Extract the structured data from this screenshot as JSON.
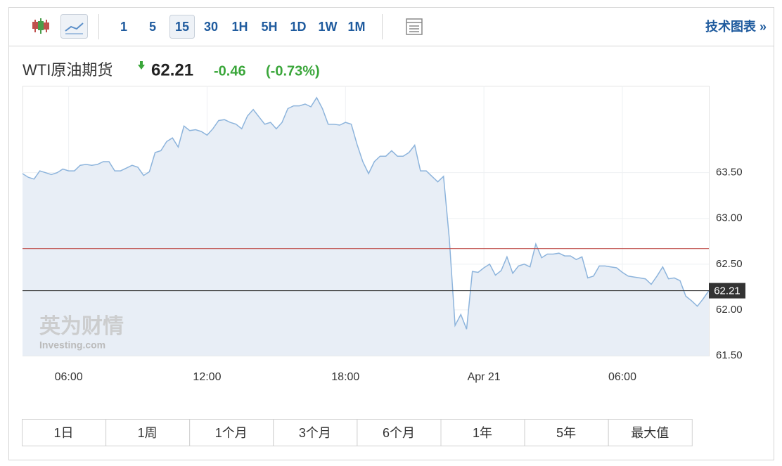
{
  "toolbar": {
    "intervals": [
      "1",
      "5",
      "15",
      "30",
      "1H",
      "5H",
      "1D",
      "1W",
      "1M"
    ],
    "active_interval": "15",
    "link": "技术图表 »"
  },
  "quote": {
    "name": "WTI原油期货",
    "price": "62.21",
    "change": "-0.46",
    "change_percent": "(-0.73%)"
  },
  "watermark": {
    "brand": "英为财情",
    "site": "Investing.com"
  },
  "chart_data": {
    "type": "line",
    "x": [
      4,
      4.25,
      4.5,
      4.75,
      5,
      5.25,
      5.5,
      5.75,
      6,
      6.25,
      6.5,
      6.75,
      7,
      7.25,
      7.5,
      7.75,
      8,
      8.25,
      8.5,
      8.75,
      9,
      9.25,
      9.5,
      9.75,
      10,
      10.25,
      10.5,
      10.75,
      11,
      11.25,
      11.5,
      11.75,
      12,
      12.25,
      12.5,
      12.75,
      13,
      13.25,
      13.5,
      13.75,
      14,
      14.25,
      14.5,
      14.75,
      15,
      15.25,
      15.5,
      15.75,
      16,
      16.25,
      16.5,
      16.75,
      17,
      17.25,
      17.5,
      17.75,
      18,
      18.25,
      18.5,
      18.75,
      19,
      19.25,
      19.5,
      19.75,
      20,
      20.25,
      20.5,
      20.75,
      21,
      21.25,
      21.5,
      21.75,
      22,
      22.25,
      22.5,
      22.75,
      23,
      23.25,
      23.5,
      23.75,
      24,
      24.25,
      24.5,
      24.75,
      25,
      25.25,
      25.5,
      25.75,
      26,
      26.25,
      26.5,
      26.75,
      27,
      27.25,
      27.5,
      27.75,
      28,
      28.25,
      28.5,
      28.75,
      29,
      29.25,
      29.5,
      29.75,
      30,
      30.25,
      30.5,
      30.75,
      31,
      31.25,
      31.5,
      31.75,
      32,
      32.25,
      32.5,
      32.75,
      33,
      33.25,
      33.5,
      33.75
    ],
    "series": [
      {
        "color": "#8db4dc",
        "fill": "#e8eef6",
        "values": [
          63.49,
          63.45,
          63.43,
          63.52,
          63.5,
          63.48,
          63.5,
          63.54,
          63.52,
          63.52,
          63.58,
          63.59,
          63.58,
          63.59,
          63.62,
          63.62,
          63.52,
          63.52,
          63.55,
          63.58,
          63.56,
          63.47,
          63.51,
          63.72,
          63.74,
          63.84,
          63.88,
          63.78,
          64.01,
          63.96,
          63.97,
          63.95,
          63.91,
          63.98,
          64.07,
          64.08,
          64.05,
          64.03,
          63.98,
          64.12,
          64.19,
          64.11,
          64.03,
          64.05,
          63.98,
          64.05,
          64.2,
          64.23,
          64.23,
          64.25,
          64.22,
          64.32,
          64.2,
          64.03,
          64.03,
          64.02,
          64.05,
          64.03,
          63.81,
          63.62,
          63.49,
          63.62,
          63.68,
          63.68,
          63.74,
          63.68,
          63.68,
          63.72,
          63.8,
          63.52,
          63.52,
          63.46,
          63.4,
          63.46,
          62.78,
          61.83,
          61.95,
          61.79,
          62.42,
          62.41,
          62.46,
          62.5,
          62.38,
          62.43,
          62.58,
          62.4,
          62.48,
          62.5,
          62.47,
          62.72,
          62.57,
          62.61,
          62.61,
          62.62,
          62.59,
          62.59,
          62.55,
          62.58,
          62.35,
          62.37,
          62.48,
          62.48,
          62.47,
          62.46,
          62.41,
          62.37,
          62.36,
          62.35,
          62.34,
          62.28,
          62.37,
          62.47,
          62.34,
          62.35,
          62.32,
          62.15,
          62.1,
          62.04,
          62.12,
          62.21
        ]
      }
    ],
    "xlim": [
      4,
      33.75
    ],
    "xticks": [
      {
        "value": 6,
        "label": "06:00"
      },
      {
        "value": 12,
        "label": "12:00"
      },
      {
        "value": 18,
        "label": "18:00"
      },
      {
        "value": 24,
        "label": "Apr 21"
      },
      {
        "value": 30,
        "label": "06:00"
      }
    ],
    "ylim": [
      61.5,
      64.45
    ],
    "yticks": [
      {
        "value": 61.5,
        "label": "61.50"
      },
      {
        "value": 62,
        "label": "62.00"
      },
      {
        "value": 62.5,
        "label": "62.50"
      },
      {
        "value": 63,
        "label": "63.00"
      },
      {
        "value": 63.5,
        "label": "63.50"
      }
    ],
    "hlines": [
      {
        "value": 62.67,
        "color": "#c0504d"
      },
      {
        "value": 62.21,
        "color": "#333333",
        "tag": true
      }
    ],
    "grid": true
  },
  "ranges": [
    "1日",
    "1周",
    "1个月",
    "3个月",
    "6个月",
    "1年",
    "5年",
    "最大值"
  ]
}
